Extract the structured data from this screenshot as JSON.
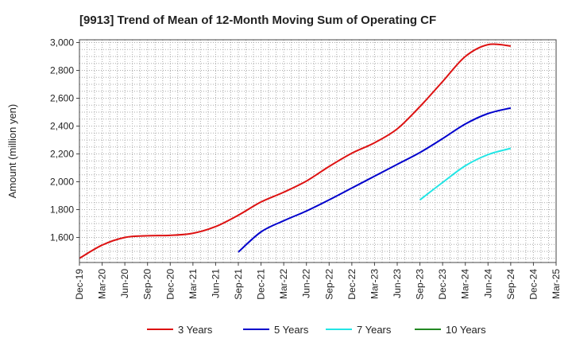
{
  "chart_data": {
    "type": "line",
    "title": "[9913]  Trend of Mean of 12-Month Moving Sum of Operating CF",
    "xlabel": "",
    "ylabel": "Amount (million yen)",
    "categories": [
      "Dec-19",
      "Mar-20",
      "Jun-20",
      "Sep-20",
      "Dec-20",
      "Mar-21",
      "Jun-21",
      "Sep-21",
      "Dec-21",
      "Mar-22",
      "Jun-22",
      "Sep-22",
      "Dec-22",
      "Mar-23",
      "Jun-23",
      "Sep-23",
      "Dec-23",
      "Mar-24",
      "Jun-24",
      "Sep-24",
      "Dec-24",
      "Mar-25"
    ],
    "y_ticks": [
      "1,600",
      "1,800",
      "2,000",
      "2,200",
      "2,400",
      "2,600",
      "2,800",
      "3,000"
    ],
    "y_tick_values": [
      1600,
      1800,
      2000,
      2200,
      2400,
      2600,
      2800,
      3000
    ],
    "ylim": [
      1420,
      3020
    ],
    "grid": true,
    "legend_position": "bottom",
    "series": [
      {
        "name": "3 Years",
        "color": "#dd1111",
        "points": [
          [
            0,
            1450
          ],
          [
            1,
            1545
          ],
          [
            2,
            1600
          ],
          [
            3,
            1612
          ],
          [
            4,
            1615
          ],
          [
            5,
            1630
          ],
          [
            6,
            1678
          ],
          [
            7,
            1760
          ],
          [
            8,
            1855
          ],
          [
            9,
            1925
          ],
          [
            10,
            2005
          ],
          [
            11,
            2110
          ],
          [
            12,
            2205
          ],
          [
            13,
            2280
          ],
          [
            14,
            2380
          ],
          [
            15,
            2540
          ],
          [
            16,
            2720
          ],
          [
            17,
            2900
          ],
          [
            18,
            2985
          ],
          [
            19,
            2975
          ]
        ]
      },
      {
        "name": "5 Years",
        "color": "#0000cc",
        "points": [
          [
            7,
            1495
          ],
          [
            8,
            1640
          ],
          [
            9,
            1720
          ],
          [
            10,
            1790
          ],
          [
            11,
            1870
          ],
          [
            12,
            1955
          ],
          [
            13,
            2040
          ],
          [
            14,
            2125
          ],
          [
            15,
            2210
          ],
          [
            16,
            2310
          ],
          [
            17,
            2415
          ],
          [
            18,
            2490
          ],
          [
            19,
            2530
          ]
        ]
      },
      {
        "name": "7 Years",
        "color": "#22e5e5",
        "points": [
          [
            15,
            1870
          ],
          [
            16,
            1995
          ],
          [
            17,
            2115
          ],
          [
            18,
            2195
          ],
          [
            19,
            2240
          ]
        ]
      },
      {
        "name": "10 Years",
        "color": "#228822",
        "points": []
      }
    ]
  }
}
